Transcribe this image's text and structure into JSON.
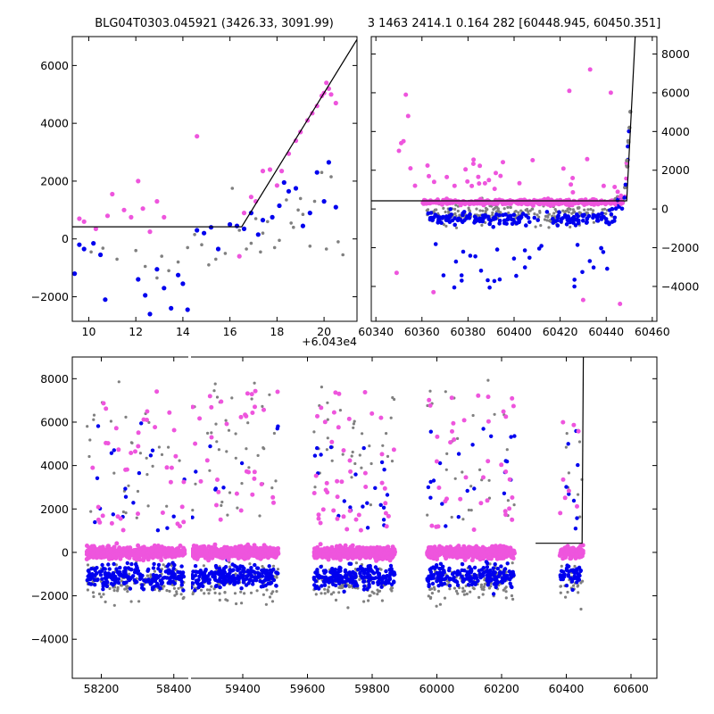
{
  "chart_data": [
    {
      "type": "scatter",
      "title": "BLG04T0303.045921 (3426.33, 3091.99)",
      "x_offset_label": "+6.043e4",
      "xlim": [
        9.3,
        21.4
      ],
      "ylim": [
        -2850,
        7000
      ],
      "x_ticks": [
        10,
        12,
        14,
        16,
        18,
        20
      ],
      "y_ticks": [
        -2000,
        0,
        2000,
        4000,
        6000
      ],
      "y_tick_side": "left",
      "model_line": [
        [
          9.3,
          420
        ],
        [
          16.5,
          420
        ],
        [
          21.4,
          6900
        ]
      ],
      "series_colors": {
        "gray": "#808080",
        "blue": "#0000ee",
        "pink": "#ee55dd"
      },
      "points": {
        "gray": [
          [
            10.1,
            -450
          ],
          [
            10.6,
            -320
          ],
          [
            11.2,
            -700
          ],
          [
            12.0,
            -400
          ],
          [
            12.4,
            -950
          ],
          [
            12.9,
            -1350
          ],
          [
            13.1,
            -600
          ],
          [
            13.4,
            -1100
          ],
          [
            13.8,
            -800
          ],
          [
            14.2,
            -300
          ],
          [
            14.5,
            150
          ],
          [
            14.8,
            -200
          ],
          [
            15.1,
            -900
          ],
          [
            15.4,
            -700
          ],
          [
            15.8,
            -500
          ],
          [
            16.1,
            1750
          ],
          [
            16.4,
            300
          ],
          [
            16.7,
            -350
          ],
          [
            16.9,
            -150
          ],
          [
            17.1,
            700
          ],
          [
            17.3,
            -450
          ],
          [
            17.6,
            600
          ],
          [
            17.9,
            -300
          ],
          [
            18.1,
            -50
          ],
          [
            18.4,
            1350
          ],
          [
            18.7,
            400
          ],
          [
            18.9,
            1000
          ],
          [
            19.1,
            850
          ],
          [
            19.4,
            -250
          ],
          [
            19.6,
            1300
          ],
          [
            19.9,
            2300
          ],
          [
            20.1,
            -350
          ],
          [
            20.3,
            2150
          ],
          [
            20.6,
            -100
          ],
          [
            20.8,
            -550
          ],
          [
            19.0,
            1400
          ],
          [
            18.6,
            550
          ],
          [
            17.4,
            200
          ]
        ],
        "blue": [
          [
            9.4,
            -1200
          ],
          [
            9.6,
            -200
          ],
          [
            9.8,
            -350
          ],
          [
            10.2,
            -150
          ],
          [
            10.5,
            -550
          ],
          [
            10.7,
            -2100
          ],
          [
            12.1,
            -1400
          ],
          [
            12.4,
            -1950
          ],
          [
            12.6,
            -2600
          ],
          [
            12.9,
            -1050
          ],
          [
            13.2,
            -1700
          ],
          [
            13.5,
            -2400
          ],
          [
            13.8,
            -1250
          ],
          [
            14.0,
            -1550
          ],
          [
            14.2,
            -2450
          ],
          [
            14.6,
            300
          ],
          [
            14.9,
            200
          ],
          [
            15.2,
            400
          ],
          [
            15.5,
            -350
          ],
          [
            16.0,
            500
          ],
          [
            16.3,
            450
          ],
          [
            16.6,
            350
          ],
          [
            16.9,
            900
          ],
          [
            17.2,
            150
          ],
          [
            17.4,
            650
          ],
          [
            17.8,
            750
          ],
          [
            18.1,
            1150
          ],
          [
            18.3,
            1950
          ],
          [
            18.5,
            1650
          ],
          [
            18.8,
            1750
          ],
          [
            19.1,
            450
          ],
          [
            19.4,
            900
          ],
          [
            19.7,
            2300
          ],
          [
            20.0,
            1300
          ],
          [
            20.2,
            2650
          ],
          [
            20.5,
            1100
          ]
        ],
        "pink": [
          [
            9.6,
            700
          ],
          [
            9.8,
            600
          ],
          [
            10.3,
            350
          ],
          [
            10.8,
            800
          ],
          [
            11.0,
            1550
          ],
          [
            11.5,
            1000
          ],
          [
            11.8,
            750
          ],
          [
            12.1,
            2000
          ],
          [
            12.3,
            1050
          ],
          [
            12.6,
            250
          ],
          [
            12.9,
            1300
          ],
          [
            13.2,
            750
          ],
          [
            14.6,
            3550
          ],
          [
            16.4,
            -600
          ],
          [
            16.6,
            900
          ],
          [
            16.9,
            1450
          ],
          [
            17.1,
            1300
          ],
          [
            17.4,
            2350
          ],
          [
            17.7,
            2400
          ],
          [
            18.0,
            1850
          ],
          [
            18.2,
            2350
          ],
          [
            18.5,
            2950
          ],
          [
            18.8,
            3400
          ],
          [
            19.0,
            3700
          ],
          [
            19.3,
            4100
          ],
          [
            19.5,
            4350
          ],
          [
            19.7,
            4600
          ],
          [
            19.9,
            4950
          ],
          [
            20.1,
            5400
          ],
          [
            20.3,
            5000
          ],
          [
            20.5,
            4700
          ],
          [
            20.0,
            5050
          ],
          [
            20.2,
            5200
          ]
        ]
      }
    },
    {
      "type": "scatter",
      "title": "3 1463 2414.1 0.164 282 [60448.945, 60450.351]",
      "xlim": [
        60338,
        60462
      ],
      "ylim": [
        -5800,
        8900
      ],
      "x_ticks": [
        60340,
        60360,
        60380,
        60400,
        60420,
        60440,
        60460
      ],
      "y_ticks": [
        -4000,
        -2000,
        0,
        2000,
        4000,
        6000,
        8000
      ],
      "y_tick_side": "right",
      "model_line": [
        [
          60338,
          420
        ],
        [
          60448.9,
          420
        ],
        [
          60452.6,
          8900
        ]
      ],
      "series_colors": {
        "gray": "#808080",
        "blue": "#0000ee",
        "pink": "#ee55dd"
      }
    },
    {
      "type": "scatter",
      "title": "",
      "xlim": [
        58120,
        60680
      ],
      "ylim": [
        -5800,
        9000
      ],
      "x_ticks": [
        58200,
        58400,
        59400,
        59600,
        59800,
        60000,
        60200,
        60400,
        60600
      ],
      "y_ticks": [
        -4000,
        -2000,
        0,
        2000,
        4000,
        6000,
        8000
      ],
      "y_tick_side": "left",
      "x_break": "between 58400 and 59400",
      "model_line": [
        [
          60305,
          420
        ],
        [
          60448.9,
          420
        ],
        [
          60452.6,
          9000
        ]
      ],
      "seasons": [
        [
          58160,
          58430
        ],
        [
          59240,
          59510
        ],
        [
          59620,
          59870
        ],
        [
          59970,
          60240
        ],
        [
          60380,
          60452
        ]
      ],
      "series_colors": {
        "gray": "#808080",
        "blue": "#0000ee",
        "pink": "#ee55dd"
      }
    }
  ]
}
